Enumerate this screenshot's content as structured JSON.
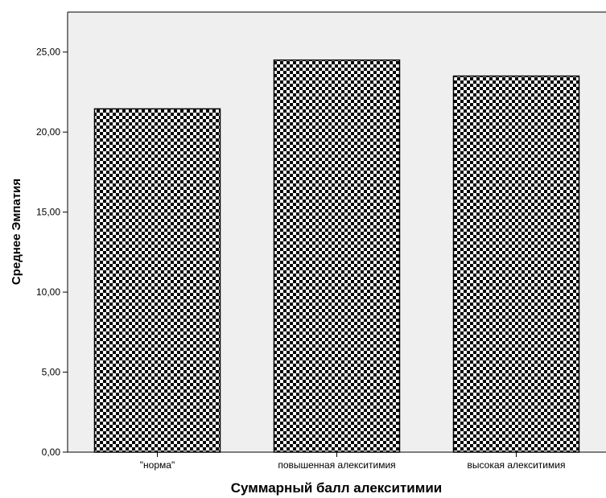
{
  "chart_data": {
    "type": "bar",
    "title": "",
    "xlabel": "Суммарный балл алекситимии",
    "ylabel": "Среднее Эмпатия",
    "categories": [
      "\"норма\"",
      "повышенная алекситимия",
      "высокая алекситимия"
    ],
    "values": [
      21.45,
      24.5,
      23.5
    ],
    "ylim": [
      0,
      27.5
    ],
    "yticks": [
      0,
      5,
      10,
      15,
      20,
      25
    ],
    "ytick_labels": [
      "0,00",
      "5,00",
      "10,00",
      "15,00",
      "20,00",
      "25,00"
    ],
    "grid": false,
    "plot_background": "#efefef",
    "bar_fill": "checkerboard black/white",
    "bar_colors": {
      "dark": "#000000",
      "light": "#ffffff",
      "edge": "#000000"
    }
  }
}
